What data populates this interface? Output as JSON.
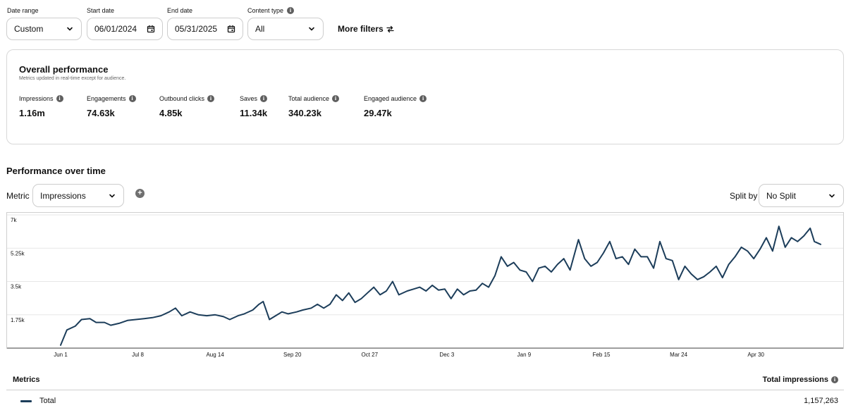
{
  "filters": {
    "date_range": {
      "label": "Date range",
      "value": "Custom"
    },
    "start_date": {
      "label": "Start date",
      "value": "06/01/2024"
    },
    "end_date": {
      "label": "End date",
      "value": "05/31/2025"
    },
    "content_type": {
      "label": "Content type",
      "value": "All"
    },
    "more_filters": "More filters"
  },
  "overall": {
    "title": "Overall performance",
    "subtitle": "Metrics updated in real-time except for audience.",
    "stats": [
      {
        "label": "Impressions",
        "value": "1.16m"
      },
      {
        "label": "Engagements",
        "value": "74.63k"
      },
      {
        "label": "Outbound clicks",
        "value": "4.85k"
      },
      {
        "label": "Saves",
        "value": "11.34k"
      },
      {
        "label": "Total audience",
        "value": "340.23k"
      },
      {
        "label": "Engaged audience",
        "value": "29.47k"
      }
    ]
  },
  "over_time": {
    "title": "Performance over time",
    "metric_label": "Metric",
    "metric_value": "Impressions",
    "add_metric_icon": "plus-circle-icon",
    "split_label": "Split by",
    "split_value": "No Split"
  },
  "colors": {
    "series": "#1c3d5a",
    "border": "#cdcdcd"
  },
  "chart_data": {
    "type": "line",
    "y_ticks": [
      "1.75k",
      "3.5k",
      "5.25k",
      "7k"
    ],
    "y_tick_values": [
      1750,
      3500,
      5250,
      7000
    ],
    "ylim": [
      0,
      7000
    ],
    "x_tick_labels": [
      "Jun 1",
      "Jul 8",
      "Aug 14",
      "Sep 20",
      "Oct 27",
      "Dec 3",
      "Jan 9",
      "Feb 15",
      "Mar 24",
      "Apr 30"
    ],
    "x_range": [
      "2024-06-01",
      "2025-05-31"
    ],
    "grid": true,
    "series": [
      {
        "name": "Total",
        "points": [
          [
            "2024-06-01",
            150
          ],
          [
            "2024-06-04",
            950
          ],
          [
            "2024-06-08",
            1150
          ],
          [
            "2024-06-11",
            1500
          ],
          [
            "2024-06-15",
            1550
          ],
          [
            "2024-06-18",
            1350
          ],
          [
            "2024-06-22",
            1350
          ],
          [
            "2024-06-25",
            1200
          ],
          [
            "2024-06-29",
            1300
          ],
          [
            "2024-07-03",
            1450
          ],
          [
            "2024-07-07",
            1500
          ],
          [
            "2024-07-11",
            1550
          ],
          [
            "2024-07-15",
            1600
          ],
          [
            "2024-07-19",
            1700
          ],
          [
            "2024-07-23",
            1900
          ],
          [
            "2024-07-26",
            2100
          ],
          [
            "2024-07-29",
            1700
          ],
          [
            "2024-08-02",
            1900
          ],
          [
            "2024-08-06",
            1750
          ],
          [
            "2024-08-10",
            1700
          ],
          [
            "2024-08-14",
            1750
          ],
          [
            "2024-08-18",
            1650
          ],
          [
            "2024-08-21",
            1500
          ],
          [
            "2024-08-25",
            1700
          ],
          [
            "2024-08-28",
            1800
          ],
          [
            "2024-09-01",
            2000
          ],
          [
            "2024-09-04",
            2300
          ],
          [
            "2024-09-06",
            2450
          ],
          [
            "2024-09-09",
            1500
          ],
          [
            "2024-09-12",
            1700
          ],
          [
            "2024-09-15",
            1900
          ],
          [
            "2024-09-18",
            1800
          ],
          [
            "2024-09-22",
            1900
          ],
          [
            "2024-09-25",
            2000
          ],
          [
            "2024-09-29",
            2100
          ],
          [
            "2024-10-02",
            2300
          ],
          [
            "2024-10-05",
            2100
          ],
          [
            "2024-10-08",
            2300
          ],
          [
            "2024-10-11",
            2800
          ],
          [
            "2024-10-14",
            2500
          ],
          [
            "2024-10-17",
            2900
          ],
          [
            "2024-10-20",
            2400
          ],
          [
            "2024-10-23",
            2600
          ],
          [
            "2024-10-26",
            2900
          ],
          [
            "2024-10-29",
            3200
          ],
          [
            "2024-11-01",
            2800
          ],
          [
            "2024-11-04",
            3000
          ],
          [
            "2024-11-07",
            3500
          ],
          [
            "2024-11-10",
            2800
          ],
          [
            "2024-11-14",
            3000
          ],
          [
            "2024-11-17",
            3100
          ],
          [
            "2024-11-20",
            3200
          ],
          [
            "2024-11-23",
            3000
          ],
          [
            "2024-11-26",
            3300
          ],
          [
            "2024-11-29",
            3050
          ],
          [
            "2024-12-02",
            3100
          ],
          [
            "2024-12-05",
            2600
          ],
          [
            "2024-12-08",
            3100
          ],
          [
            "2024-12-11",
            2800
          ],
          [
            "2024-12-14",
            3000
          ],
          [
            "2024-12-17",
            3050
          ],
          [
            "2024-12-20",
            3400
          ],
          [
            "2024-12-23",
            3200
          ],
          [
            "2024-12-26",
            3800
          ],
          [
            "2024-12-29",
            4800
          ],
          [
            "2025-01-01",
            4300
          ],
          [
            "2025-01-04",
            4500
          ],
          [
            "2025-01-07",
            4100
          ],
          [
            "2025-01-10",
            4000
          ],
          [
            "2025-01-13",
            3500
          ],
          [
            "2025-01-16",
            4200
          ],
          [
            "2025-01-19",
            4300
          ],
          [
            "2025-01-22",
            4000
          ],
          [
            "2025-01-25",
            4400
          ],
          [
            "2025-01-28",
            4700
          ],
          [
            "2025-01-31",
            4100
          ],
          [
            "2025-02-04",
            5700
          ],
          [
            "2025-02-07",
            4700
          ],
          [
            "2025-02-10",
            4300
          ],
          [
            "2025-02-13",
            4500
          ],
          [
            "2025-02-16",
            5000
          ],
          [
            "2025-02-19",
            5600
          ],
          [
            "2025-02-22",
            4700
          ],
          [
            "2025-02-25",
            4800
          ],
          [
            "2025-02-28",
            4400
          ],
          [
            "2025-03-03",
            5200
          ],
          [
            "2025-03-06",
            4800
          ],
          [
            "2025-03-09",
            4800
          ],
          [
            "2025-03-12",
            4200
          ],
          [
            "2025-03-15",
            5600
          ],
          [
            "2025-03-18",
            4700
          ],
          [
            "2025-03-21",
            4600
          ],
          [
            "2025-03-24",
            3600
          ],
          [
            "2025-03-27",
            4300
          ],
          [
            "2025-03-30",
            3900
          ],
          [
            "2025-04-02",
            3600
          ],
          [
            "2025-04-05",
            3750
          ],
          [
            "2025-04-08",
            4000
          ],
          [
            "2025-04-11",
            4300
          ],
          [
            "2025-04-14",
            3700
          ],
          [
            "2025-04-17",
            4400
          ],
          [
            "2025-04-20",
            4800
          ],
          [
            "2025-04-23",
            5300
          ],
          [
            "2025-04-26",
            5100
          ],
          [
            "2025-04-29",
            4700
          ],
          [
            "2025-05-02",
            5200
          ],
          [
            "2025-05-05",
            5800
          ],
          [
            "2025-05-08",
            5100
          ],
          [
            "2025-05-11",
            6400
          ],
          [
            "2025-05-14",
            5300
          ],
          [
            "2025-05-17",
            5800
          ],
          [
            "2025-05-20",
            5600
          ],
          [
            "2025-05-23",
            5900
          ],
          [
            "2025-05-26",
            6300
          ],
          [
            "2025-05-28",
            5600
          ],
          [
            "2025-05-31",
            5450
          ]
        ]
      }
    ]
  },
  "metrics_table": {
    "header_left": "Metrics",
    "header_right": "Total impressions",
    "rows": [
      {
        "label": "Total",
        "value": "1,157,263"
      }
    ]
  }
}
